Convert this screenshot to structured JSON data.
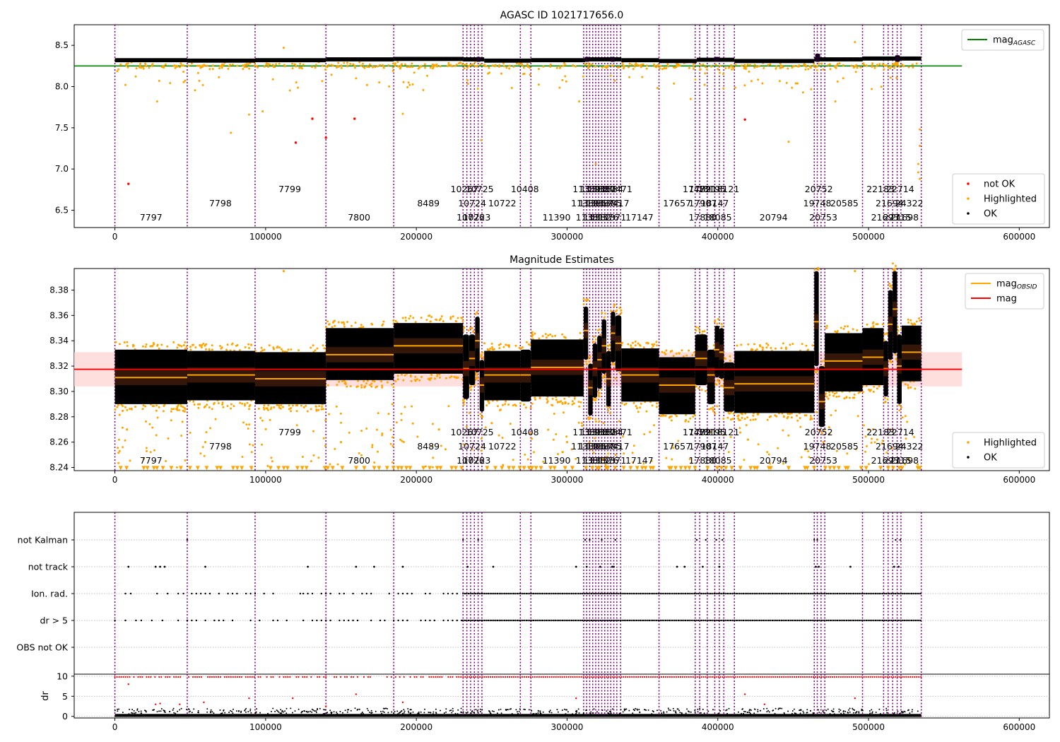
{
  "figure": {
    "title": "AGASC ID 1021717656.0"
  },
  "colors": {
    "ok": "#000000",
    "highlighted": "#ffa500",
    "not_ok": "#ff0000",
    "mag_agasc": "#008000",
    "mag": "#ff0000",
    "mag_obsid": "#ffa500",
    "obsid_lines": "#800080",
    "mag_band": "#ffd6d6"
  },
  "chart_data": [
    {
      "type": "scatter",
      "name": "top",
      "title": "AGASC ID 1021717656.0",
      "xlim": [
        -27000,
        620000
      ],
      "ylim": [
        6.29,
        8.75
      ],
      "xticks": [
        0,
        100000,
        200000,
        300000,
        400000,
        500000,
        600000
      ],
      "xtick_labels": [
        "0",
        "100000",
        "200000",
        "300000",
        "400000",
        "500000",
        "600000"
      ],
      "yticks": [
        6.5,
        7.0,
        7.5,
        8.0,
        8.5
      ],
      "ytick_labels": [
        "6.5",
        "7.0",
        "7.5",
        "8.0",
        "8.5"
      ],
      "mag_agasc": 8.25,
      "mag_agasc_xrange": [
        -27000,
        562000
      ],
      "legend_upper": [
        {
          "label": "mag",
          "sub": "AGASC",
          "color": "#008000",
          "kind": "line"
        }
      ],
      "legend_lower": [
        {
          "label": "not OK",
          "color": "#ff0000",
          "kind": "dot"
        },
        {
          "label": "Highlighted",
          "color": "#ffa500",
          "kind": "dot"
        },
        {
          "label": "OK",
          "color": "#000000",
          "kind": "dot"
        }
      ],
      "ok_segments": [
        {
          "x0": 0,
          "x1": 48000,
          "y": 8.32
        },
        {
          "x0": 48000,
          "x1": 93000,
          "y": 8.315
        },
        {
          "x0": 93000,
          "x1": 140000,
          "y": 8.32
        },
        {
          "x0": 140000,
          "x1": 185000,
          "y": 8.33
        },
        {
          "x0": 185000,
          "x1": 231000,
          "y": 8.335
        },
        {
          "x0": 231000,
          "x1": 245000,
          "y": 8.33
        },
        {
          "x0": 245000,
          "x1": 276000,
          "y": 8.315
        },
        {
          "x0": 276000,
          "x1": 312000,
          "y": 8.32
        },
        {
          "x0": 312000,
          "x1": 336000,
          "y": 8.33
        },
        {
          "x0": 336000,
          "x1": 361000,
          "y": 8.32
        },
        {
          "x0": 361000,
          "x1": 386000,
          "y": 8.31
        },
        {
          "x0": 386000,
          "x1": 411000,
          "y": 8.325
        },
        {
          "x0": 411000,
          "x1": 464000,
          "y": 8.31
        },
        {
          "x0": 464000,
          "x1": 496000,
          "y": 8.33
        },
        {
          "x0": 496000,
          "x1": 535000,
          "y": 8.34
        }
      ],
      "not_ok_points": [
        [
          9000,
          6.82
        ],
        [
          120000,
          7.32
        ],
        [
          131000,
          7.61
        ],
        [
          159000,
          7.61
        ],
        [
          418000,
          7.6
        ],
        [
          140000,
          7.38
        ]
      ],
      "highlighted_outliers": [
        [
          7000,
          8.02
        ],
        [
          28000,
          7.82
        ],
        [
          112000,
          8.47
        ],
        [
          77000,
          7.44
        ],
        [
          89000,
          7.66
        ],
        [
          191000,
          7.67
        ],
        [
          243000,
          7.35
        ],
        [
          308000,
          7.82
        ],
        [
          319000,
          7.06
        ],
        [
          382000,
          7.85
        ],
        [
          447000,
          7.33
        ],
        [
          491000,
          8.54
        ],
        [
          534000,
          7.48
        ],
        [
          534000,
          7.28
        ],
        [
          533000,
          6.96
        ],
        [
          534000,
          6.88
        ],
        [
          533000,
          7.06
        ],
        [
          56000,
          8.07
        ],
        [
          160000,
          8.1
        ],
        [
          478000,
          7.82
        ],
        [
          98000,
          7.7
        ]
      ]
    },
    {
      "type": "scatter",
      "name": "middle",
      "title": "Magnitude Estimates",
      "xlim": [
        -27000,
        620000
      ],
      "ylim": [
        8.2375,
        8.397
      ],
      "xticks": [
        0,
        100000,
        200000,
        300000,
        400000,
        500000,
        600000
      ],
      "xtick_labels": [
        "0",
        "100000",
        "200000",
        "300000",
        "400000",
        "500000",
        "600000"
      ],
      "yticks": [
        8.24,
        8.26,
        8.28,
        8.3,
        8.32,
        8.34,
        8.36,
        8.38
      ],
      "ytick_labels": [
        "8.24",
        "8.26",
        "8.28",
        "8.30",
        "8.32",
        "8.34",
        "8.36",
        "8.38"
      ],
      "mag": 8.3175,
      "mag_band": [
        8.304,
        8.331
      ],
      "mag_xrange": [
        -27000,
        562000
      ],
      "legend_upper": [
        {
          "label": "mag",
          "sub": "OBSID",
          "color": "#ffa500",
          "kind": "line"
        },
        {
          "label": "mag",
          "sub": "",
          "color": "#ff0000",
          "kind": "line"
        }
      ],
      "legend_lower": [
        {
          "label": "Highlighted",
          "color": "#ffa500",
          "kind": "dot"
        },
        {
          "label": "OK",
          "color": "#000000",
          "kind": "dot"
        }
      ],
      "obs_blocks": [
        {
          "x0": 0,
          "x1": 48000,
          "mean": 8.311,
          "lo": 8.29,
          "hi": 8.333
        },
        {
          "x0": 48000,
          "x1": 93000,
          "mean": 8.313,
          "lo": 8.293,
          "hi": 8.332
        },
        {
          "x0": 93000,
          "x1": 140000,
          "mean": 8.31,
          "lo": 8.29,
          "hi": 8.331
        },
        {
          "x0": 140000,
          "x1": 185000,
          "mean": 8.329,
          "lo": 8.309,
          "hi": 8.35
        },
        {
          "x0": 185000,
          "x1": 231000,
          "mean": 8.336,
          "lo": 8.314,
          "hi": 8.354
        },
        {
          "x0": 231000,
          "x1": 235000,
          "mean": 8.318,
          "lo": 8.294,
          "hi": 8.345
        },
        {
          "x0": 235000,
          "x1": 239000,
          "mean": 8.326,
          "lo": 8.305,
          "hi": 8.345
        },
        {
          "x0": 239000,
          "x1": 242000,
          "mean": 8.34,
          "lo": 8.315,
          "hi": 8.359
        },
        {
          "x0": 242000,
          "x1": 245000,
          "mean": 8.305,
          "lo": 8.284,
          "hi": 8.325
        },
        {
          "x0": 245000,
          "x1": 269000,
          "mean": 8.313,
          "lo": 8.293,
          "hi": 8.332
        },
        {
          "x0": 269000,
          "x1": 276000,
          "mean": 8.313,
          "lo": 8.292,
          "hi": 8.333
        },
        {
          "x0": 276000,
          "x1": 311000,
          "mean": 8.319,
          "lo": 8.296,
          "hi": 8.341
        },
        {
          "x0": 311000,
          "x1": 314000,
          "mean": 8.348,
          "lo": 8.325,
          "hi": 8.367
        },
        {
          "x0": 314000,
          "x1": 317000,
          "mean": 8.303,
          "lo": 8.281,
          "hi": 8.322
        },
        {
          "x0": 317000,
          "x1": 320000,
          "mean": 8.318,
          "lo": 8.295,
          "hi": 8.338
        },
        {
          "x0": 320000,
          "x1": 323000,
          "mean": 8.325,
          "lo": 8.302,
          "hi": 8.344
        },
        {
          "x0": 323000,
          "x1": 326000,
          "mean": 8.336,
          "lo": 8.314,
          "hi": 8.357
        },
        {
          "x0": 326000,
          "x1": 329000,
          "mean": 8.31,
          "lo": 8.288,
          "hi": 8.332
        },
        {
          "x0": 329000,
          "x1": 332000,
          "mean": 8.346,
          "lo": 8.323,
          "hi": 8.363
        },
        {
          "x0": 332000,
          "x1": 336000,
          "mean": 8.338,
          "lo": 8.316,
          "hi": 8.36
        },
        {
          "x0": 336000,
          "x1": 361000,
          "mean": 8.313,
          "lo": 8.292,
          "hi": 8.334
        },
        {
          "x0": 361000,
          "x1": 385000,
          "mean": 8.305,
          "lo": 8.282,
          "hi": 8.327
        },
        {
          "x0": 385000,
          "x1": 393000,
          "mean": 8.326,
          "lo": 8.305,
          "hi": 8.345
        },
        {
          "x0": 393000,
          "x1": 398000,
          "mean": 8.313,
          "lo": 8.29,
          "hi": 8.333
        },
        {
          "x0": 398000,
          "x1": 401000,
          "mean": 8.333,
          "lo": 8.311,
          "hi": 8.352
        },
        {
          "x0": 401000,
          "x1": 404000,
          "mean": 8.331,
          "lo": 8.31,
          "hi": 8.35
        },
        {
          "x0": 404000,
          "x1": 411000,
          "mean": 8.303,
          "lo": 8.284,
          "hi": 8.323
        },
        {
          "x0": 411000,
          "x1": 464000,
          "mean": 8.306,
          "lo": 8.283,
          "hi": 8.332
        },
        {
          "x0": 464000,
          "x1": 467000,
          "mean": 8.355,
          "lo": 8.32,
          "hi": 8.395
        },
        {
          "x0": 467000,
          "x1": 471000,
          "mean": 8.292,
          "lo": 8.272,
          "hi": 8.32
        },
        {
          "x0": 471000,
          "x1": 496000,
          "mean": 8.324,
          "lo": 8.3,
          "hi": 8.346
        },
        {
          "x0": 496000,
          "x1": 510000,
          "mean": 8.327,
          "lo": 8.305,
          "hi": 8.35
        },
        {
          "x0": 510000,
          "x1": 513000,
          "mean": 8.318,
          "lo": 8.296,
          "hi": 8.34
        },
        {
          "x0": 513000,
          "x1": 516000,
          "mean": 8.353,
          "lo": 8.325,
          "hi": 8.38
        },
        {
          "x0": 516000,
          "x1": 519000,
          "mean": 8.365,
          "lo": 8.33,
          "hi": 8.395
        },
        {
          "x0": 519000,
          "x1": 522000,
          "mean": 8.32,
          "lo": 8.29,
          "hi": 8.345
        },
        {
          "x0": 522000,
          "x1": 535000,
          "mean": 8.331,
          "lo": 8.308,
          "hi": 8.352
        }
      ],
      "bottom_marker_y": 8.2395,
      "highlighted_outliers": [
        [
          112000,
          8.395
        ],
        [
          491000,
          8.395
        ],
        [
          517000,
          8.395
        ],
        [
          8000,
          8.27
        ],
        [
          60000,
          8.26
        ],
        [
          150000,
          8.26
        ],
        [
          215000,
          8.27
        ],
        [
          300000,
          8.26
        ],
        [
          420000,
          8.262
        ],
        [
          470000,
          8.26
        ],
        [
          500000,
          8.27
        ],
        [
          250000,
          8.275
        ],
        [
          355000,
          8.268
        ]
      ]
    },
    {
      "type": "scatter",
      "name": "flags",
      "xlim": [
        -27000,
        620000
      ],
      "xticks": [
        0,
        100000,
        200000,
        300000,
        400000,
        500000,
        600000
      ],
      "categories": [
        "not Kalman",
        "not track",
        "Ion. rad.",
        "dr > 5",
        "OBS not OK"
      ],
      "not_kalman_x": [
        48000,
        231000,
        241000,
        312000,
        315000,
        323000,
        332000,
        386000,
        392000,
        399000,
        403000,
        464000,
        466000,
        518000,
        521000
      ],
      "not_track_x": [
        9000,
        27000,
        30000,
        33000,
        60000,
        128000,
        160000,
        172000,
        191000,
        234000,
        251000,
        306000,
        313000,
        322000,
        330000,
        331000,
        373000,
        378000,
        390000,
        401000,
        465000,
        467000,
        488000,
        517000,
        520000
      ],
      "ion_rad_range": [
        [
          0,
          48000
        ],
        [
          48000,
          125000
        ],
        [
          125000,
          231000
        ],
        [
          231000,
          535000
        ]
      ],
      "dr5_range": [
        [
          0,
          48000
        ],
        [
          48000,
          125000
        ],
        [
          125000,
          231000
        ],
        [
          231000,
          535000
        ]
      ]
    },
    {
      "type": "scatter",
      "name": "dr",
      "ylabel": "dr",
      "xlim": [
        -27000,
        620000
      ],
      "ylim": [
        -0.4,
        10.5
      ],
      "yticks": [
        0,
        5,
        10
      ],
      "ytick_labels": [
        "0",
        "5",
        "10"
      ],
      "xticks": [
        0,
        100000,
        200000,
        300000,
        400000,
        500000,
        600000
      ],
      "xtick_labels": [
        "0",
        "100000",
        "200000",
        "300000",
        "400000",
        "500000",
        "600000"
      ],
      "clip_value": 9.8,
      "red_outliers": [
        [
          9000,
          8.0
        ],
        [
          27000,
          3.0
        ],
        [
          30000,
          3.2
        ],
        [
          43000,
          3.0
        ],
        [
          59000,
          3.5
        ],
        [
          89000,
          4.5
        ],
        [
          118000,
          4.5
        ],
        [
          140000,
          2.5
        ],
        [
          160000,
          5.5
        ],
        [
          191000,
          3.5
        ],
        [
          306000,
          4.5
        ],
        [
          418000,
          5.5
        ],
        [
          431000,
          3.0
        ],
        [
          491000,
          4.5
        ]
      ]
    }
  ],
  "obsids": {
    "boundaries": [
      0,
      48000,
      93000,
      140000,
      185000,
      231000,
      233500,
      236000,
      238500,
      241000,
      243500,
      269000,
      276000,
      311000,
      313000,
      315000,
      317000,
      319000,
      321000,
      323000,
      325000,
      327000,
      329000,
      331000,
      333000,
      335500,
      361000,
      385000,
      388000,
      393000,
      398000,
      401000,
      404000,
      411000,
      464000,
      466000,
      468500,
      471000,
      496000,
      510000,
      513000,
      516000,
      519000,
      521500,
      535000
    ],
    "labels": [
      {
        "text": "7797",
        "x": 24000,
        "row": 0
      },
      {
        "text": "7798",
        "x": 70000,
        "row": 1
      },
      {
        "text": "7799",
        "x": 116000,
        "row": 2
      },
      {
        "text": "7800",
        "x": 162000,
        "row": 0
      },
      {
        "text": "8489",
        "x": 208000,
        "row": 1
      },
      {
        "text": "10267",
        "x": 232000,
        "row": 2
      },
      {
        "text": "10724",
        "x": 237000,
        "row": 1
      },
      {
        "text": "10725",
        "x": 242000,
        "row": 2
      },
      {
        "text": "10726",
        "x": 236000,
        "row": 0
      },
      {
        "text": "10723",
        "x": 240000,
        "row": 0
      },
      {
        "text": "10722",
        "x": 257000,
        "row": 1
      },
      {
        "text": "10408",
        "x": 272000,
        "row": 2
      },
      {
        "text": "11390",
        "x": 293000,
        "row": 0
      },
      {
        "text": "11389",
        "x": 313000,
        "row": 2
      },
      {
        "text": "11388",
        "x": 318000,
        "row": 2
      },
      {
        "text": "11380",
        "x": 323000,
        "row": 2
      },
      {
        "text": "11384",
        "x": 328000,
        "row": 2
      },
      {
        "text": "17471",
        "x": 334000,
        "row": 2
      },
      {
        "text": "11383",
        "x": 312000,
        "row": 1
      },
      {
        "text": "11386",
        "x": 317000,
        "row": 1
      },
      {
        "text": "11387",
        "x": 322000,
        "row": 1
      },
      {
        "text": "11385",
        "x": 327000,
        "row": 1
      },
      {
        "text": "17417",
        "x": 332000,
        "row": 1
      },
      {
        "text": "11381",
        "x": 315000,
        "row": 0
      },
      {
        "text": "11382",
        "x": 320000,
        "row": 0
      },
      {
        "text": "11376",
        "x": 325000,
        "row": 0
      },
      {
        "text": "17371",
        "x": 330000,
        "row": 0
      },
      {
        "text": "17147",
        "x": 348000,
        "row": 0
      },
      {
        "text": "17657",
        "x": 373000,
        "row": 1
      },
      {
        "text": "17472",
        "x": 386000,
        "row": 2
      },
      {
        "text": "17891",
        "x": 390000,
        "row": 2
      },
      {
        "text": "18195",
        "x": 396000,
        "row": 2
      },
      {
        "text": "18121",
        "x": 405000,
        "row": 2
      },
      {
        "text": "17907",
        "x": 390000,
        "row": 1
      },
      {
        "text": "18147",
        "x": 398000,
        "row": 1
      },
      {
        "text": "17880",
        "x": 390000,
        "row": 0
      },
      {
        "text": "18085",
        "x": 400000,
        "row": 0
      },
      {
        "text": "20794",
        "x": 437000,
        "row": 0
      },
      {
        "text": "20752",
        "x": 467000,
        "row": 2
      },
      {
        "text": "19748",
        "x": 466000,
        "row": 1
      },
      {
        "text": "20753",
        "x": 470000,
        "row": 0
      },
      {
        "text": "20585",
        "x": 484000,
        "row": 1
      },
      {
        "text": "22183",
        "x": 508000,
        "row": 2
      },
      {
        "text": "22714",
        "x": 521000,
        "row": 2
      },
      {
        "text": "21694",
        "x": 514000,
        "row": 1
      },
      {
        "text": "24322",
        "x": 527000,
        "row": 1
      },
      {
        "text": "21693",
        "x": 511000,
        "row": 0
      },
      {
        "text": "22715",
        "x": 519000,
        "row": 0
      },
      {
        "text": "21698",
        "x": 524000,
        "row": 0
      }
    ]
  }
}
